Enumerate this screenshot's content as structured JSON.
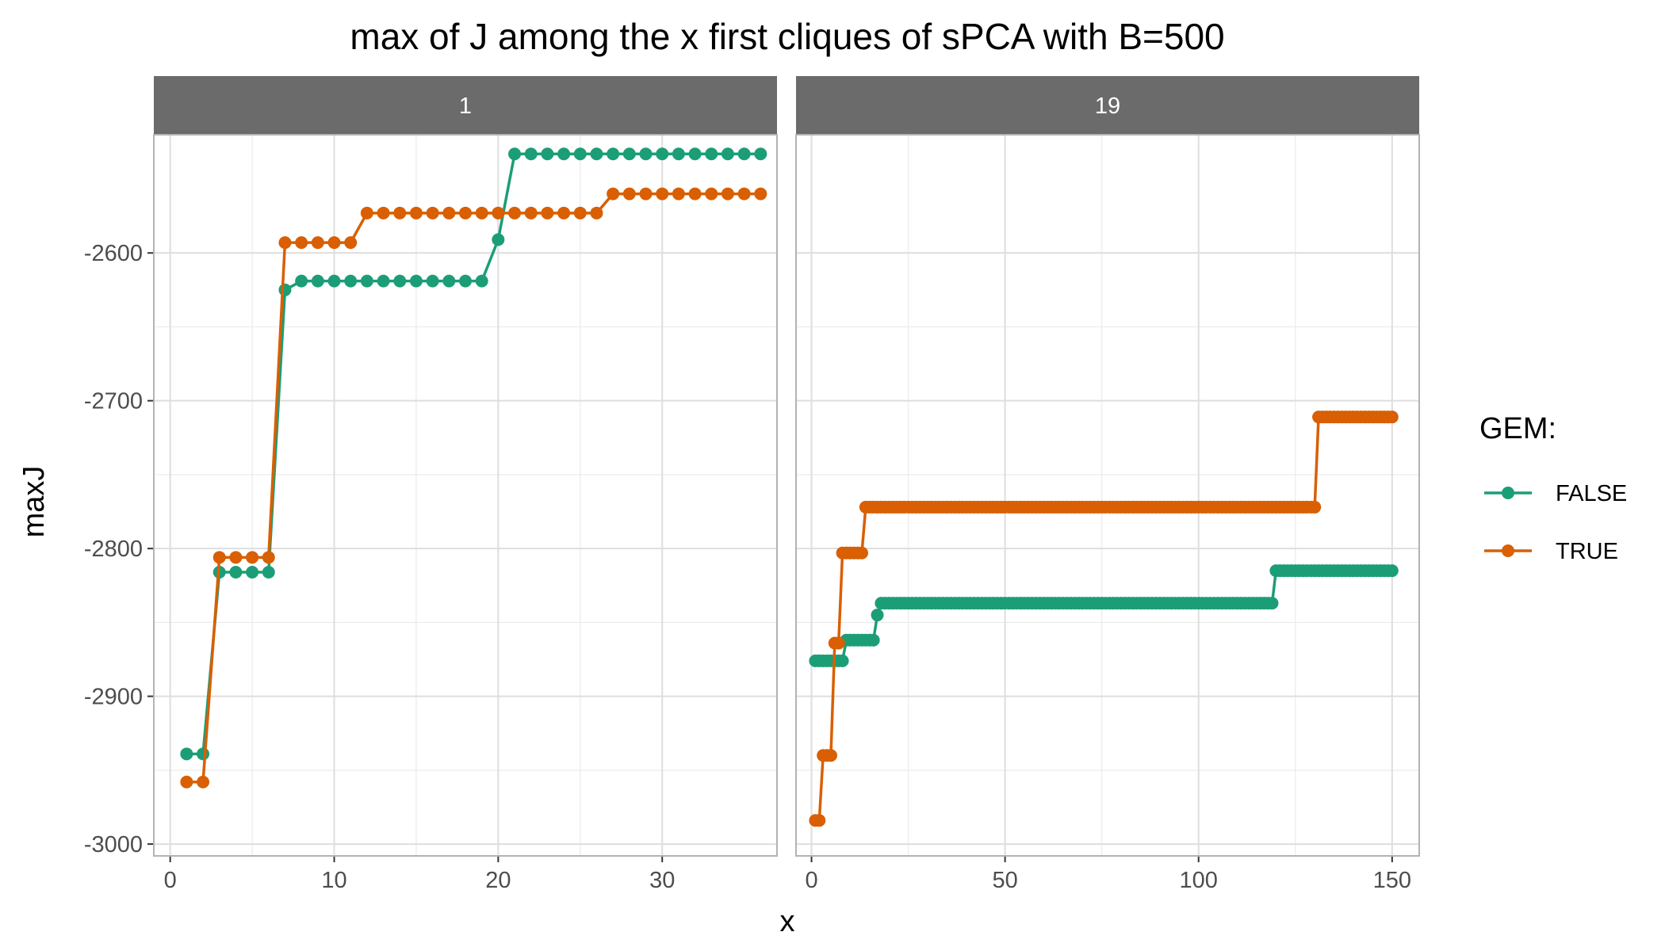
{
  "chart_data": {
    "type": "line",
    "title": "max of J among the x first cliques of sPCA with B=500",
    "xlabel": "x",
    "ylabel": "maxJ",
    "ylim": [
      -3008,
      -2520
    ],
    "y_ticks": [
      -3000,
      -2900,
      -2800,
      -2700,
      -2600
    ],
    "grid": true,
    "legend": {
      "title": "GEM:",
      "position": "right",
      "entries": [
        {
          "label": "FALSE",
          "color": "#1b9e77"
        },
        {
          "label": "TRUE",
          "color": "#d95f02"
        }
      ]
    },
    "facets": [
      {
        "label": "1",
        "xlim": [
          -1,
          37
        ],
        "x_ticks": [
          0,
          10,
          20,
          30
        ],
        "series": [
          {
            "name": "FALSE",
            "color": "#1b9e77",
            "x": [
              1,
              2,
              3,
              4,
              5,
              6,
              7,
              8,
              9,
              10,
              11,
              12,
              13,
              14,
              15,
              16,
              17,
              18,
              19,
              20,
              21,
              22,
              23,
              24,
              25,
              26,
              27,
              28,
              29,
              30,
              31,
              32,
              33,
              34,
              35,
              36
            ],
            "y": [
              -2939,
              -2939,
              -2816,
              -2816,
              -2816,
              -2816,
              -2625,
              -2619,
              -2619,
              -2619,
              -2619,
              -2619,
              -2619,
              -2619,
              -2619,
              -2619,
              -2619,
              -2619,
              -2619,
              -2591,
              -2533,
              -2533,
              -2533,
              -2533,
              -2533,
              -2533,
              -2533,
              -2533,
              -2533,
              -2533,
              -2533,
              -2533,
              -2533,
              -2533,
              -2533,
              -2533
            ]
          },
          {
            "name": "TRUE",
            "color": "#d95f02",
            "x": [
              1,
              2,
              3,
              4,
              5,
              6,
              7,
              8,
              9,
              10,
              11,
              12,
              13,
              14,
              15,
              16,
              17,
              18,
              19,
              20,
              21,
              22,
              23,
              24,
              25,
              26,
              27,
              28,
              29,
              30,
              31,
              32,
              33,
              34,
              35,
              36
            ],
            "y": [
              -2958,
              -2958,
              -2806,
              -2806,
              -2806,
              -2806,
              -2593,
              -2593,
              -2593,
              -2593,
              -2593,
              -2573,
              -2573,
              -2573,
              -2573,
              -2573,
              -2573,
              -2573,
              -2573,
              -2573,
              -2573,
              -2573,
              -2573,
              -2573,
              -2573,
              -2573,
              -2560,
              -2560,
              -2560,
              -2560,
              -2560,
              -2560,
              -2560,
              -2560,
              -2560,
              -2560
            ]
          }
        ]
      },
      {
        "label": "19",
        "xlim": [
          -4,
          157
        ],
        "x_ticks": [
          0,
          50,
          100,
          150
        ],
        "series": [
          {
            "name": "FALSE",
            "color": "#1b9e77",
            "steps": [
              {
                "from": 1,
                "to": 9,
                "y": -2876
              },
              {
                "from": 9,
                "to": 17,
                "y": -2862
              },
              {
                "from": 17,
                "to": 18,
                "y": -2845
              },
              {
                "from": 18,
                "to": 120,
                "y": -2837
              },
              {
                "from": 120,
                "to": 150,
                "y": -2815
              }
            ]
          },
          {
            "name": "TRUE",
            "color": "#d95f02",
            "steps": [
              {
                "from": 1,
                "to": 3,
                "y": -2984
              },
              {
                "from": 3,
                "to": 6,
                "y": -2940
              },
              {
                "from": 6,
                "to": 8,
                "y": -2864
              },
              {
                "from": 8,
                "to": 14,
                "y": -2803
              },
              {
                "from": 14,
                "to": 131,
                "y": -2772
              },
              {
                "from": 131,
                "to": 150,
                "y": -2711
              }
            ]
          }
        ]
      }
    ]
  }
}
